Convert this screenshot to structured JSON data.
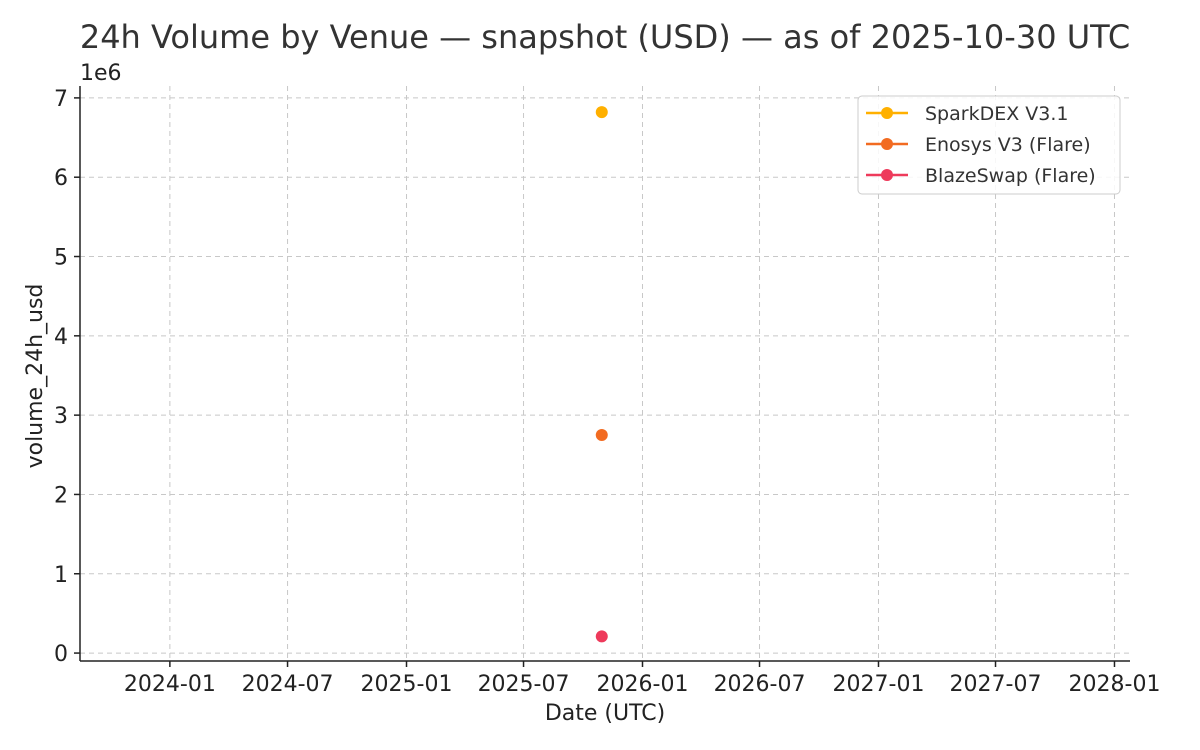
{
  "chart_data": {
    "type": "scatter",
    "title": "24h Volume by Venue — snapshot (USD) — as of 2025-10-30 UTC",
    "xlabel": "Date (UTC)",
    "ylabel": "volume_24h_usd",
    "y_offset_label": "1e6",
    "xlim": [
      "2023-08-15",
      "2028-01-25"
    ],
    "ylim": [
      -100000,
      7150000
    ],
    "x_ticks": [
      "2024-01-01",
      "2024-07-01",
      "2025-01-01",
      "2025-07-01",
      "2026-01-01",
      "2026-07-01",
      "2027-01-01",
      "2027-07-01",
      "2028-01-01"
    ],
    "x_tick_labels": [
      "2024-01",
      "2024-07",
      "2025-01",
      "2025-07",
      "2026-01",
      "2026-07",
      "2027-01",
      "2027-07",
      "2028-01"
    ],
    "y_ticks": [
      0,
      1000000,
      2000000,
      3000000,
      4000000,
      5000000,
      6000000,
      7000000
    ],
    "y_tick_labels": [
      "0",
      "1",
      "2",
      "3",
      "4",
      "5",
      "6",
      "7"
    ],
    "grid": true,
    "legend_position": "top-right",
    "series": [
      {
        "name": "SparkDEX V3.1",
        "color": "#FFB000",
        "points": [
          {
            "x": "2025-10-30",
            "y": 6820000
          }
        ]
      },
      {
        "name": "Enosys V3 (Flare)",
        "color": "#F26B21",
        "points": [
          {
            "x": "2025-10-30",
            "y": 2750000
          }
        ]
      },
      {
        "name": "BlazeSwap (Flare)",
        "color": "#EE3A5B",
        "points": [
          {
            "x": "2025-10-30",
            "y": 210000
          }
        ]
      }
    ]
  }
}
